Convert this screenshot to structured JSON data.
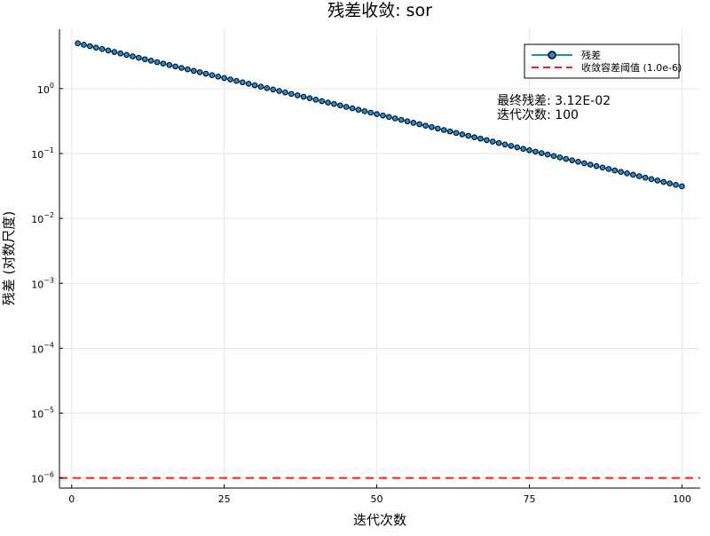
{
  "chart_data": {
    "type": "line",
    "title": "残差收敛: sor",
    "xlabel": "迭代次数",
    "ylabel": "残差 (对数尺度)",
    "xlim": [
      -2,
      103
    ],
    "ylim": [
      7e-07,
      8.2
    ],
    "yscale": "log",
    "grid": true,
    "legend_position": "top-right",
    "x_ticks": [
      {
        "value": 0,
        "label": "0"
      },
      {
        "value": 25,
        "label": "25"
      },
      {
        "value": 50,
        "label": "50"
      },
      {
        "value": 75,
        "label": "75"
      },
      {
        "value": 100,
        "label": "100"
      }
    ],
    "y_ticks": [
      {
        "value": 1e-06,
        "base": "10",
        "exp": "−6"
      },
      {
        "value": 1e-05,
        "base": "10",
        "exp": "−5"
      },
      {
        "value": 0.0001,
        "base": "10",
        "exp": "−4"
      },
      {
        "value": 0.001,
        "base": "10",
        "exp": "−3"
      },
      {
        "value": 0.01,
        "base": "10",
        "exp": "−2"
      },
      {
        "value": 0.1,
        "base": "10",
        "exp": "−1"
      },
      {
        "value": 1,
        "base": "10",
        "exp": "0"
      }
    ],
    "series": [
      {
        "name": "残差",
        "color": "#1f8ad6",
        "marker": "circle",
        "x_start": 1,
        "x_end": 100,
        "y_first": 4.98,
        "y_last": 0.0312
      },
      {
        "name": "收敛容差阈值 (1.0e-6)",
        "color": "#ff1a1a",
        "style": "dashed",
        "y": 1e-06
      }
    ],
    "annotations": [
      "最终残差: 3.12E-02",
      "迭代次数: 100"
    ]
  }
}
